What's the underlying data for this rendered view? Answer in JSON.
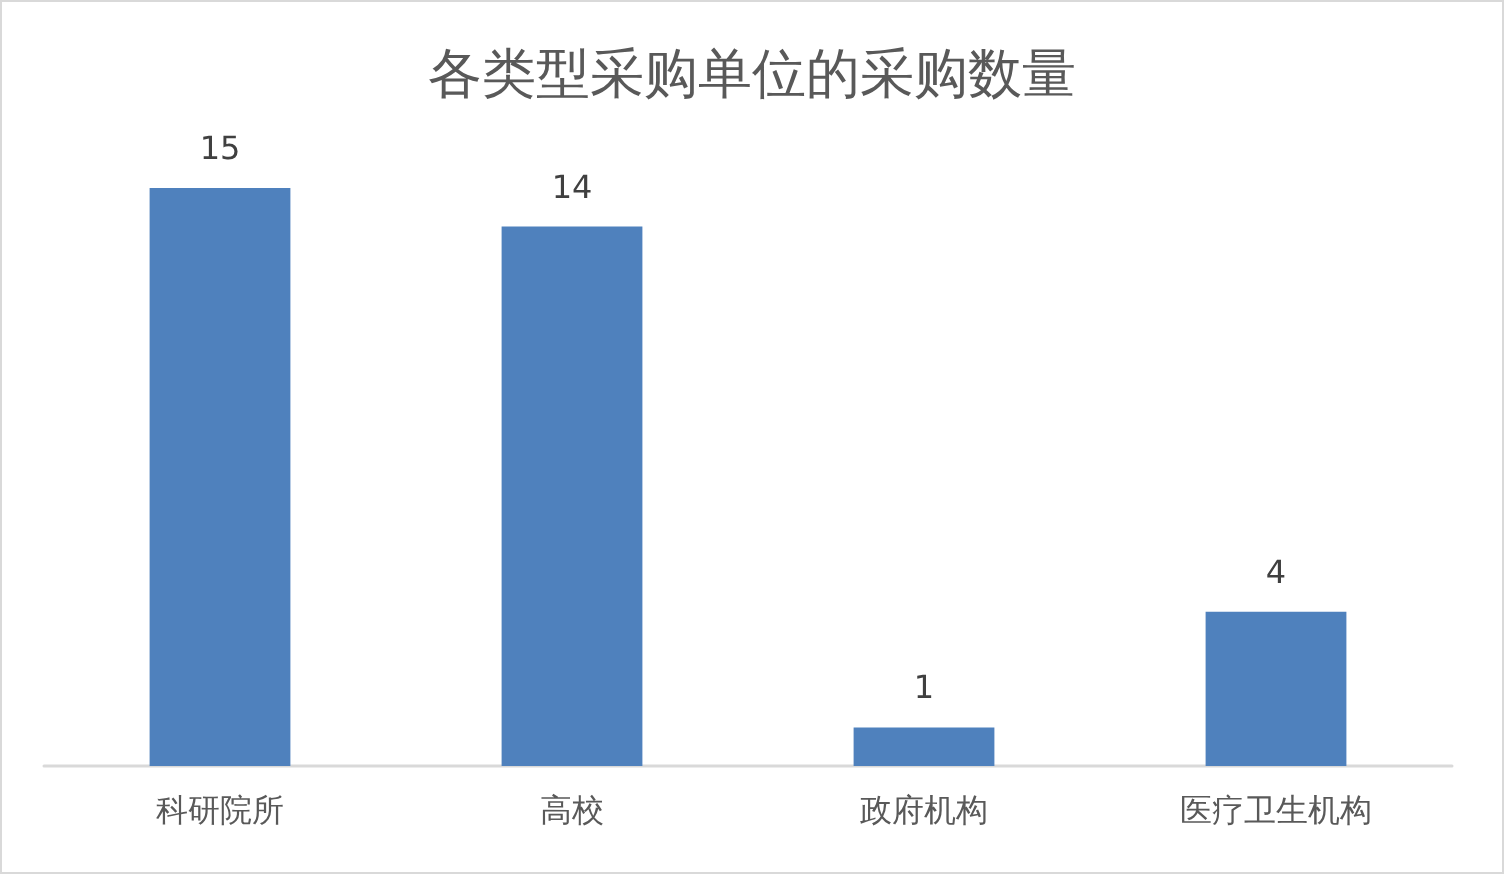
{
  "chart_data": {
    "type": "bar",
    "title": "各类型采购单位的采购数量",
    "categories": [
      "科研院所",
      "高校",
      "政府机构",
      "医疗卫生机构"
    ],
    "values": [
      15,
      14,
      1,
      4
    ],
    "color": "#4f81bd",
    "data_labels": true
  }
}
